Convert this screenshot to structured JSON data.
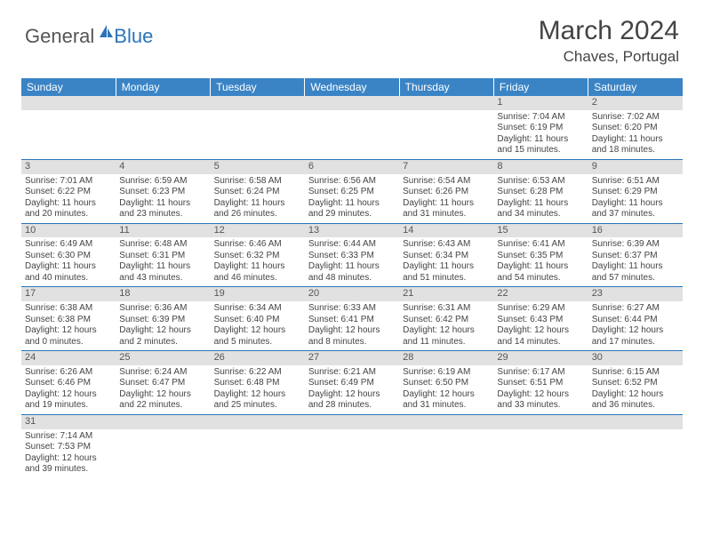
{
  "logo": {
    "general": "General",
    "blue": "Blue"
  },
  "title": "March 2024",
  "location": "Chaves, Portugal",
  "colors": {
    "header_bg": "#3a84c6",
    "row_divider": "#2a74b8",
    "daynum_bg": "#e1e1e1",
    "text": "#444444"
  },
  "weekdays": [
    "Sunday",
    "Monday",
    "Tuesday",
    "Wednesday",
    "Thursday",
    "Friday",
    "Saturday"
  ],
  "weeks": [
    [
      null,
      null,
      null,
      null,
      null,
      {
        "n": "1",
        "sr": "Sunrise: 7:04 AM",
        "ss": "Sunset: 6:19 PM",
        "dl": "Daylight: 11 hours and 15 minutes."
      },
      {
        "n": "2",
        "sr": "Sunrise: 7:02 AM",
        "ss": "Sunset: 6:20 PM",
        "dl": "Daylight: 11 hours and 18 minutes."
      }
    ],
    [
      {
        "n": "3",
        "sr": "Sunrise: 7:01 AM",
        "ss": "Sunset: 6:22 PM",
        "dl": "Daylight: 11 hours and 20 minutes."
      },
      {
        "n": "4",
        "sr": "Sunrise: 6:59 AM",
        "ss": "Sunset: 6:23 PM",
        "dl": "Daylight: 11 hours and 23 minutes."
      },
      {
        "n": "5",
        "sr": "Sunrise: 6:58 AM",
        "ss": "Sunset: 6:24 PM",
        "dl": "Daylight: 11 hours and 26 minutes."
      },
      {
        "n": "6",
        "sr": "Sunrise: 6:56 AM",
        "ss": "Sunset: 6:25 PM",
        "dl": "Daylight: 11 hours and 29 minutes."
      },
      {
        "n": "7",
        "sr": "Sunrise: 6:54 AM",
        "ss": "Sunset: 6:26 PM",
        "dl": "Daylight: 11 hours and 31 minutes."
      },
      {
        "n": "8",
        "sr": "Sunrise: 6:53 AM",
        "ss": "Sunset: 6:28 PM",
        "dl": "Daylight: 11 hours and 34 minutes."
      },
      {
        "n": "9",
        "sr": "Sunrise: 6:51 AM",
        "ss": "Sunset: 6:29 PM",
        "dl": "Daylight: 11 hours and 37 minutes."
      }
    ],
    [
      {
        "n": "10",
        "sr": "Sunrise: 6:49 AM",
        "ss": "Sunset: 6:30 PM",
        "dl": "Daylight: 11 hours and 40 minutes."
      },
      {
        "n": "11",
        "sr": "Sunrise: 6:48 AM",
        "ss": "Sunset: 6:31 PM",
        "dl": "Daylight: 11 hours and 43 minutes."
      },
      {
        "n": "12",
        "sr": "Sunrise: 6:46 AM",
        "ss": "Sunset: 6:32 PM",
        "dl": "Daylight: 11 hours and 46 minutes."
      },
      {
        "n": "13",
        "sr": "Sunrise: 6:44 AM",
        "ss": "Sunset: 6:33 PM",
        "dl": "Daylight: 11 hours and 48 minutes."
      },
      {
        "n": "14",
        "sr": "Sunrise: 6:43 AM",
        "ss": "Sunset: 6:34 PM",
        "dl": "Daylight: 11 hours and 51 minutes."
      },
      {
        "n": "15",
        "sr": "Sunrise: 6:41 AM",
        "ss": "Sunset: 6:35 PM",
        "dl": "Daylight: 11 hours and 54 minutes."
      },
      {
        "n": "16",
        "sr": "Sunrise: 6:39 AM",
        "ss": "Sunset: 6:37 PM",
        "dl": "Daylight: 11 hours and 57 minutes."
      }
    ],
    [
      {
        "n": "17",
        "sr": "Sunrise: 6:38 AM",
        "ss": "Sunset: 6:38 PM",
        "dl": "Daylight: 12 hours and 0 minutes."
      },
      {
        "n": "18",
        "sr": "Sunrise: 6:36 AM",
        "ss": "Sunset: 6:39 PM",
        "dl": "Daylight: 12 hours and 2 minutes."
      },
      {
        "n": "19",
        "sr": "Sunrise: 6:34 AM",
        "ss": "Sunset: 6:40 PM",
        "dl": "Daylight: 12 hours and 5 minutes."
      },
      {
        "n": "20",
        "sr": "Sunrise: 6:33 AM",
        "ss": "Sunset: 6:41 PM",
        "dl": "Daylight: 12 hours and 8 minutes."
      },
      {
        "n": "21",
        "sr": "Sunrise: 6:31 AM",
        "ss": "Sunset: 6:42 PM",
        "dl": "Daylight: 12 hours and 11 minutes."
      },
      {
        "n": "22",
        "sr": "Sunrise: 6:29 AM",
        "ss": "Sunset: 6:43 PM",
        "dl": "Daylight: 12 hours and 14 minutes."
      },
      {
        "n": "23",
        "sr": "Sunrise: 6:27 AM",
        "ss": "Sunset: 6:44 PM",
        "dl": "Daylight: 12 hours and 17 minutes."
      }
    ],
    [
      {
        "n": "24",
        "sr": "Sunrise: 6:26 AM",
        "ss": "Sunset: 6:46 PM",
        "dl": "Daylight: 12 hours and 19 minutes."
      },
      {
        "n": "25",
        "sr": "Sunrise: 6:24 AM",
        "ss": "Sunset: 6:47 PM",
        "dl": "Daylight: 12 hours and 22 minutes."
      },
      {
        "n": "26",
        "sr": "Sunrise: 6:22 AM",
        "ss": "Sunset: 6:48 PM",
        "dl": "Daylight: 12 hours and 25 minutes."
      },
      {
        "n": "27",
        "sr": "Sunrise: 6:21 AM",
        "ss": "Sunset: 6:49 PM",
        "dl": "Daylight: 12 hours and 28 minutes."
      },
      {
        "n": "28",
        "sr": "Sunrise: 6:19 AM",
        "ss": "Sunset: 6:50 PM",
        "dl": "Daylight: 12 hours and 31 minutes."
      },
      {
        "n": "29",
        "sr": "Sunrise: 6:17 AM",
        "ss": "Sunset: 6:51 PM",
        "dl": "Daylight: 12 hours and 33 minutes."
      },
      {
        "n": "30",
        "sr": "Sunrise: 6:15 AM",
        "ss": "Sunset: 6:52 PM",
        "dl": "Daylight: 12 hours and 36 minutes."
      }
    ],
    [
      {
        "n": "31",
        "sr": "Sunrise: 7:14 AM",
        "ss": "Sunset: 7:53 PM",
        "dl": "Daylight: 12 hours and 39 minutes."
      },
      null,
      null,
      null,
      null,
      null,
      null
    ]
  ]
}
